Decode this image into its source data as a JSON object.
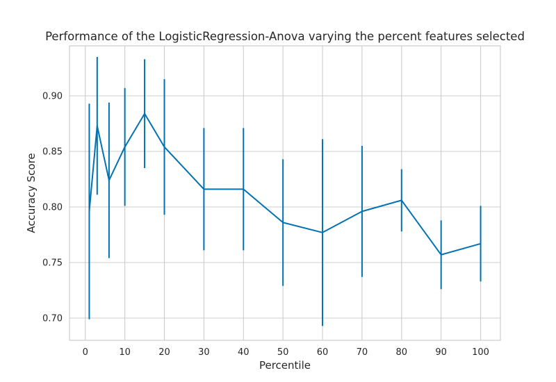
{
  "chart_data": {
    "type": "line",
    "title": "Performance of the LogisticRegression-Anova varying the percent features selected",
    "xlabel": "Percentile",
    "ylabel": "Accuracy Score",
    "xlim": [
      -4,
      105
    ],
    "ylim": [
      0.68,
      0.945
    ],
    "xticks": [
      0,
      10,
      20,
      30,
      40,
      50,
      60,
      70,
      80,
      90,
      100
    ],
    "yticks": [
      0.7,
      0.75,
      0.8,
      0.85,
      0.9
    ],
    "ytick_labels": [
      "0.70",
      "0.75",
      "0.80",
      "0.85",
      "0.90"
    ],
    "grid": true,
    "legend": "none",
    "series": [
      {
        "color": "#0072b2",
        "x": [
          1,
          3,
          6,
          10,
          15,
          20,
          30,
          40,
          50,
          60,
          70,
          80,
          90,
          100
        ],
        "y": [
          0.796,
          0.873,
          0.824,
          0.854,
          0.884,
          0.854,
          0.816,
          0.816,
          0.786,
          0.777,
          0.796,
          0.806,
          0.757,
          0.767
        ],
        "error": [
          0.097,
          0.062,
          0.07,
          0.053,
          0.049,
          0.061,
          0.055,
          0.055,
          0.057,
          0.084,
          0.059,
          0.028,
          0.031,
          0.034
        ]
      }
    ]
  }
}
